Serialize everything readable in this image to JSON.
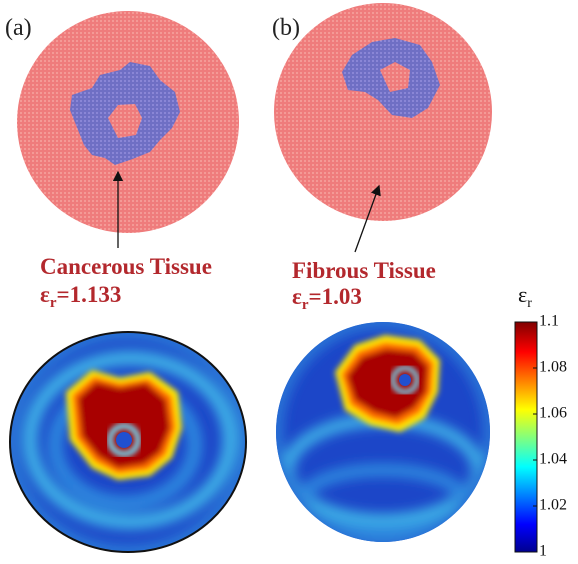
{
  "panels": [
    {
      "label": "(a)",
      "annotation": {
        "label": "Cancerous Tissue",
        "symbol": "ε",
        "subscript": "r",
        "sign": "=",
        "value": 1.133
      }
    },
    {
      "label": "(b)",
      "annotation": {
        "label": "Fibrous Tissue",
        "symbol": "ε",
        "subscript": "r",
        "sign": "=",
        "value": 1.03
      }
    }
  ],
  "colorbar": {
    "symbol": "ε",
    "subscript": "r",
    "lim": [
      1,
      1.1
    ],
    "ticks": [
      1,
      1.02,
      1.04,
      1.06,
      1.08,
      1.1
    ]
  }
}
